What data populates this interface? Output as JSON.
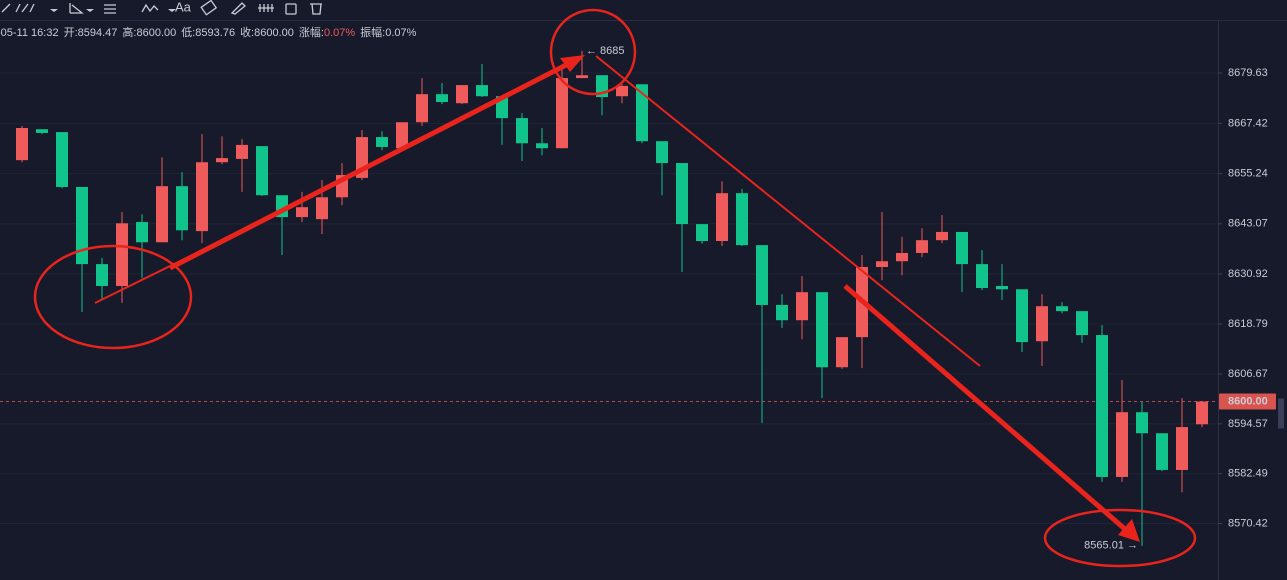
{
  "toolbar": {
    "text_tool": "Aa"
  },
  "info": [
    [
      "-05-11 16:32"
    ],
    [
      "开:",
      "8594.47"
    ],
    [
      "高:",
      "8600.00"
    ],
    [
      "低:",
      "8593.76"
    ],
    [
      "收:",
      "8600.00"
    ],
    [
      "涨幅:",
      "0.07%"
    ],
    [
      "振幅:",
      "0.07%"
    ]
  ],
  "chart_data": {
    "type": "candlestick",
    "up_color": "#ef5a5a",
    "down_color": "#10c48c",
    "grid": true,
    "ylim": [
      8557.45,
      8692.48
    ],
    "yticks": [
      8679.63,
      8667.42,
      8655.24,
      8643.07,
      8630.92,
      8618.79,
      8606.67,
      8594.57,
      8582.49,
      8570.42
    ],
    "last_price": {
      "value": 8600,
      "label": "8600.00"
    },
    "high_label": {
      "value": 8685,
      "label": "← 8685"
    },
    "low_label": {
      "value": 8565.01,
      "label": "8565.01 →"
    },
    "open": [
      8658.5,
      8666.0,
      8665.3,
      8652.0,
      8633.3,
      8628.0,
      8643.5,
      8638.6,
      8652.2,
      8641.3,
      8658.0,
      8658.8,
      8661.9,
      8650.0,
      8644.7,
      8644.2,
      8649.5,
      8654.2,
      8664.1,
      8661.4,
      8667.7,
      8674.5,
      8672.3,
      8676.7,
      8674.0,
      8668.7,
      8662.6,
      8661.4,
      8678.4,
      8679.1,
      8674.0,
      8676.9,
      8663.1,
      8657.8,
      8643.0,
      8638.9,
      8650.5,
      8637.9,
      8623.4,
      8619.7,
      8626.5,
      8608.3,
      8615.6,
      8632.6,
      8634.0,
      8636.0,
      8639.1,
      8641.1,
      8633.3,
      8628.0,
      8627.2,
      8614.6,
      8623.1,
      8621.9,
      8616.1,
      8581.7,
      8597.4,
      8592.3,
      8583.4,
      8594.47
    ],
    "high": [
      8666.8,
      8666.0,
      8665.3,
      8652.0,
      8634.8,
      8645.9,
      8645.4,
      8659.2,
      8655.6,
      8664.8,
      8664.3,
      8663.6,
      8661.9,
      8650.0,
      8650.8,
      8653.7,
      8657.8,
      8665.8,
      8665.5,
      8667.7,
      8678.4,
      8677.2,
      8676.7,
      8681.8,
      8674.0,
      8669.9,
      8666.3,
      8680.8,
      8685,
      8679.1,
      8676.9,
      8676.9,
      8663.1,
      8657.8,
      8643.0,
      8653.4,
      8651.5,
      8637.9,
      8626.0,
      8630.4,
      8626.5,
      8615.6,
      8635.5,
      8645.9,
      8639.9,
      8642.0,
      8645.2,
      8641.1,
      8636.7,
      8633.3,
      8627.2,
      8626.0,
      8624.1,
      8621.9,
      8618.5,
      8605.2,
      8599.9,
      8592.3,
      8600.8,
      8600.0
    ],
    "low": [
      8658.0,
      8664.8,
      8651.7,
      8621.7,
      8624.6,
      8623.9,
      8629.9,
      8638.6,
      8639.1,
      8638.4,
      8657.5,
      8650.8,
      8649.8,
      8635.5,
      8643.5,
      8640.6,
      8647.6,
      8653.7,
      8660.9,
      8660.9,
      8666.8,
      8672.1,
      8672.1,
      8673.8,
      8662.2,
      8658.3,
      8659.7,
      8661.4,
      8678.4,
      8669.4,
      8672.3,
      8662.6,
      8650.0,
      8631.4,
      8638.2,
      8637.7,
      8637.7,
      8594.8,
      8617.8,
      8615.1,
      8600.8,
      8607.9,
      8608.1,
      8629.4,
      8630.6,
      8635.0,
      8638.4,
      8626.5,
      8627.0,
      8624.6,
      8612.0,
      8608.6,
      8621.4,
      8614.2,
      8580.5,
      8580.5,
      8565.01,
      8583.1,
      8578.0,
      8593.76
    ],
    "close": [
      8666.3,
      8665.1,
      8652.0,
      8633.3,
      8628.0,
      8643.2,
      8638.6,
      8652.2,
      8641.5,
      8658.0,
      8659.0,
      8662.2,
      8650.0,
      8644.7,
      8647.1,
      8649.5,
      8654.9,
      8664.1,
      8661.7,
      8667.7,
      8674.5,
      8672.6,
      8676.7,
      8674.0,
      8668.7,
      8662.6,
      8661.4,
      8678.4,
      8679.1,
      8673.8,
      8676.5,
      8663.1,
      8657.8,
      8643.0,
      8638.9,
      8650.5,
      8637.9,
      8623.4,
      8619.7,
      8626.5,
      8608.3,
      8615.6,
      8632.6,
      8634.0,
      8636.0,
      8639.1,
      8641.1,
      8633.3,
      8627.5,
      8627.2,
      8614.4,
      8623.1,
      8621.9,
      8616.1,
      8581.7,
      8597.4,
      8592.3,
      8583.4,
      8593.8,
      8600.0
    ]
  }
}
